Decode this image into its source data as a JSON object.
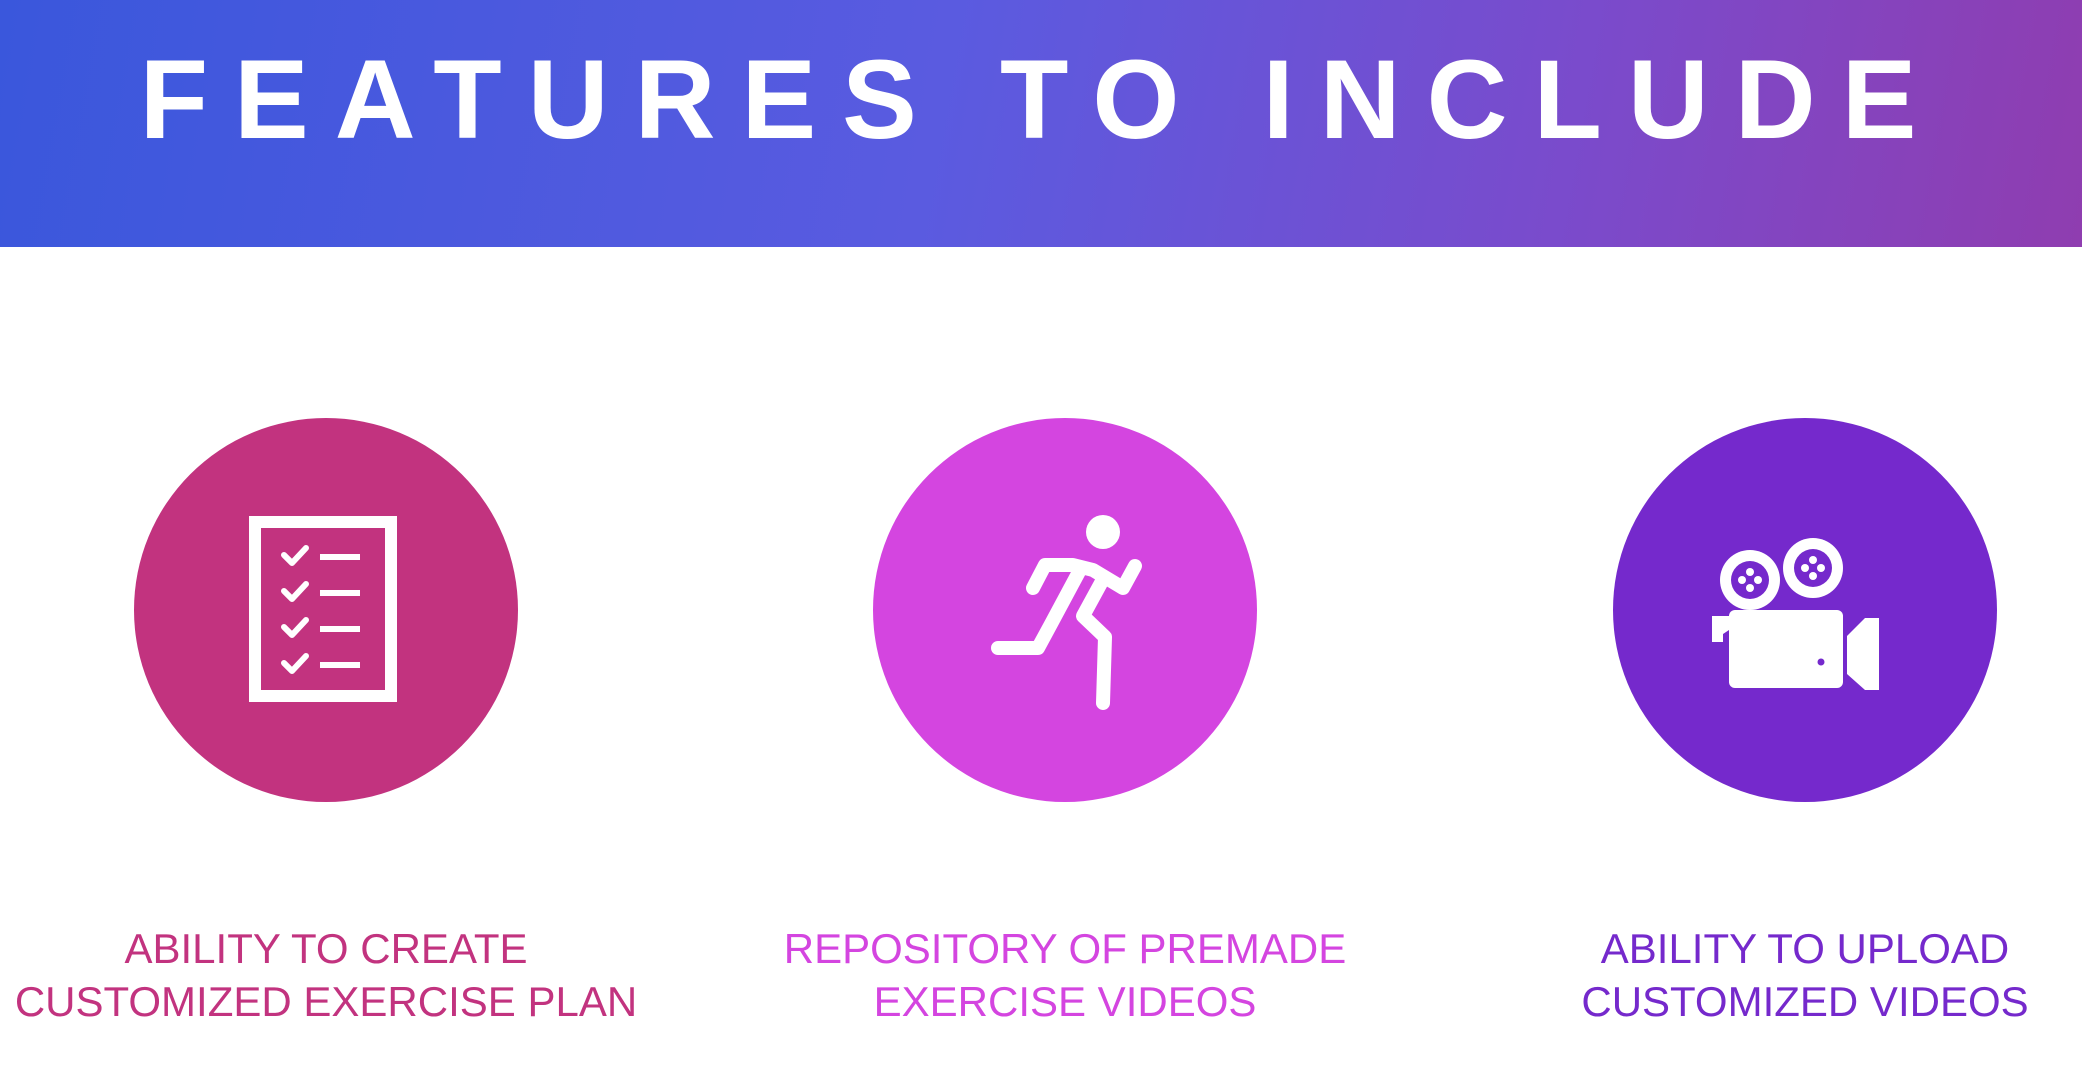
{
  "header": {
    "title": "FEATURES TO INCLUDE"
  },
  "colors": {
    "header_gradient_start": "#3a57dc",
    "header_gradient_end": "#8f3db0",
    "feature_1": "#c2337f",
    "feature_2": "#d445e0",
    "feature_3": "#7529cc"
  },
  "features": [
    {
      "icon": "checklist-icon",
      "line1": "ABILITY TO CREATE",
      "line2": "CUSTOMIZED EXERCISE PLAN"
    },
    {
      "icon": "running-person-icon",
      "line1": "REPOSITORY OF PREMADE",
      "line2": "EXERCISE VIDEOS"
    },
    {
      "icon": "video-camera-icon",
      "line1": "ABILITY TO UPLOAD",
      "line2": "CUSTOMIZED VIDEOS"
    }
  ]
}
